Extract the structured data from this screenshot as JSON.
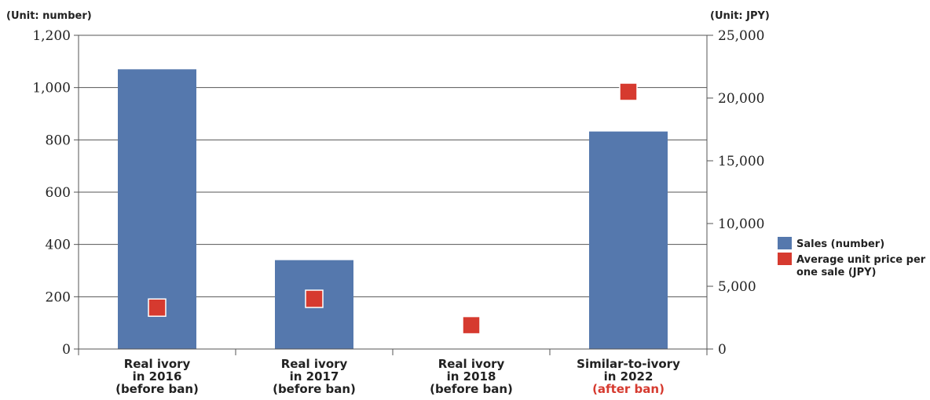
{
  "chart_data": {
    "type": "bar",
    "left_unit_label": "(Unit: number)",
    "right_unit_label": "(Unit: JPY)",
    "categories": [
      {
        "lines": [
          "Real ivory",
          "in 2016",
          "(before ban)"
        ],
        "highlight_last": false
      },
      {
        "lines": [
          "Real ivory",
          "in 2017",
          "(before ban)"
        ],
        "highlight_last": false
      },
      {
        "lines": [
          "Real ivory",
          "in 2018",
          "(before ban)"
        ],
        "highlight_last": false
      },
      {
        "lines": [
          "Similar-to-ivory",
          "in 2022",
          "(after ban)"
        ],
        "highlight_last": true
      }
    ],
    "series": [
      {
        "name": "Sales (number)",
        "kind": "bar",
        "axis": "left",
        "color": "#5578ad",
        "values": [
          1070,
          340,
          null,
          832
        ]
      },
      {
        "name": "Average unit price per one sale (JPY)",
        "kind": "marker",
        "axis": "right",
        "color": "#d63a2f",
        "values": [
          3300,
          4000,
          1900,
          20500
        ]
      }
    ],
    "left_axis": {
      "min": 0,
      "max": 1200,
      "ticks": [
        0,
        200,
        400,
        600,
        800,
        1000,
        1200
      ],
      "tick_labels": [
        "0",
        "200",
        "400",
        "600",
        "800",
        "1,000",
        "1,200"
      ]
    },
    "right_axis": {
      "min": 0,
      "max": 25000,
      "ticks": [
        0,
        5000,
        10000,
        15000,
        20000,
        25000
      ],
      "tick_labels": [
        "0",
        "5,000",
        "10,000",
        "15,000",
        "20,000",
        "25,000"
      ]
    },
    "grid": true,
    "legend_position": "right",
    "legend": [
      {
        "lines": [
          "Sales (number)"
        ],
        "color": "#5578ad"
      },
      {
        "lines": [
          "Average unit price per",
          "one sale (JPY)"
        ],
        "color": "#d63a2f"
      }
    ],
    "highlight_color": "#d63a2f"
  }
}
